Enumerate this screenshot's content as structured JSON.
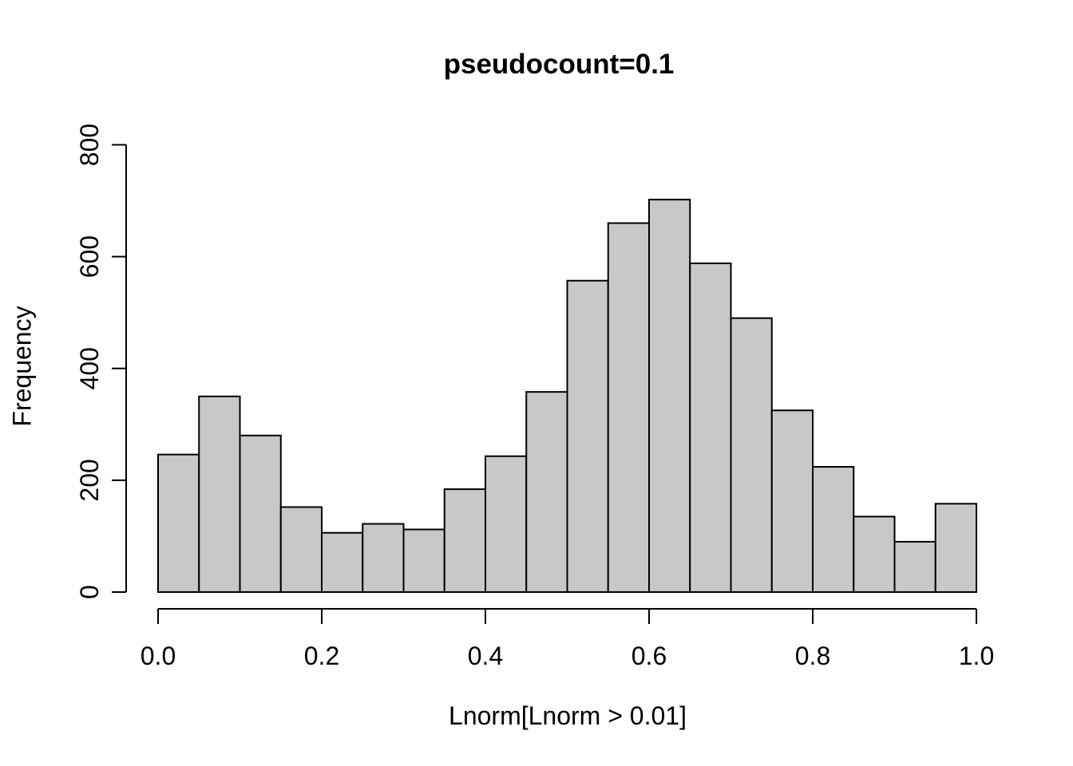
{
  "chart_data": {
    "type": "bar",
    "subtype": "histogram",
    "title": "pseudocount=0.1",
    "xlabel": "Lnorm[Lnorm > 0.01]",
    "ylabel": "Frequency",
    "xlim": [
      0,
      1
    ],
    "ylim": [
      0,
      800
    ],
    "grid": "off",
    "legend": "none",
    "bin_edges": [
      0.0,
      0.05,
      0.1,
      0.15,
      0.2,
      0.25,
      0.3,
      0.35,
      0.4,
      0.45,
      0.5,
      0.55,
      0.6,
      0.65,
      0.7,
      0.75,
      0.8,
      0.85,
      0.9,
      0.95,
      1.0
    ],
    "counts": [
      246,
      350,
      280,
      152,
      106,
      122,
      112,
      184,
      243,
      358,
      557,
      660,
      702,
      588,
      490,
      325,
      224,
      135,
      90,
      158
    ],
    "x_ticks": {
      "values": [
        0.0,
        0.2,
        0.4,
        0.6,
        0.8,
        1.0
      ],
      "labels": [
        "0.0",
        "0.2",
        "0.4",
        "0.6",
        "0.8",
        "1.0"
      ]
    },
    "y_ticks": {
      "values": [
        0,
        200,
        400,
        600,
        800
      ],
      "labels": [
        "0",
        "200",
        "400",
        "600",
        "800"
      ]
    },
    "colors": {
      "bar_fill": "#c8c8c8",
      "bar_stroke": "#000000",
      "axis": "#000000",
      "text": "#000000",
      "background": "#ffffff"
    }
  }
}
